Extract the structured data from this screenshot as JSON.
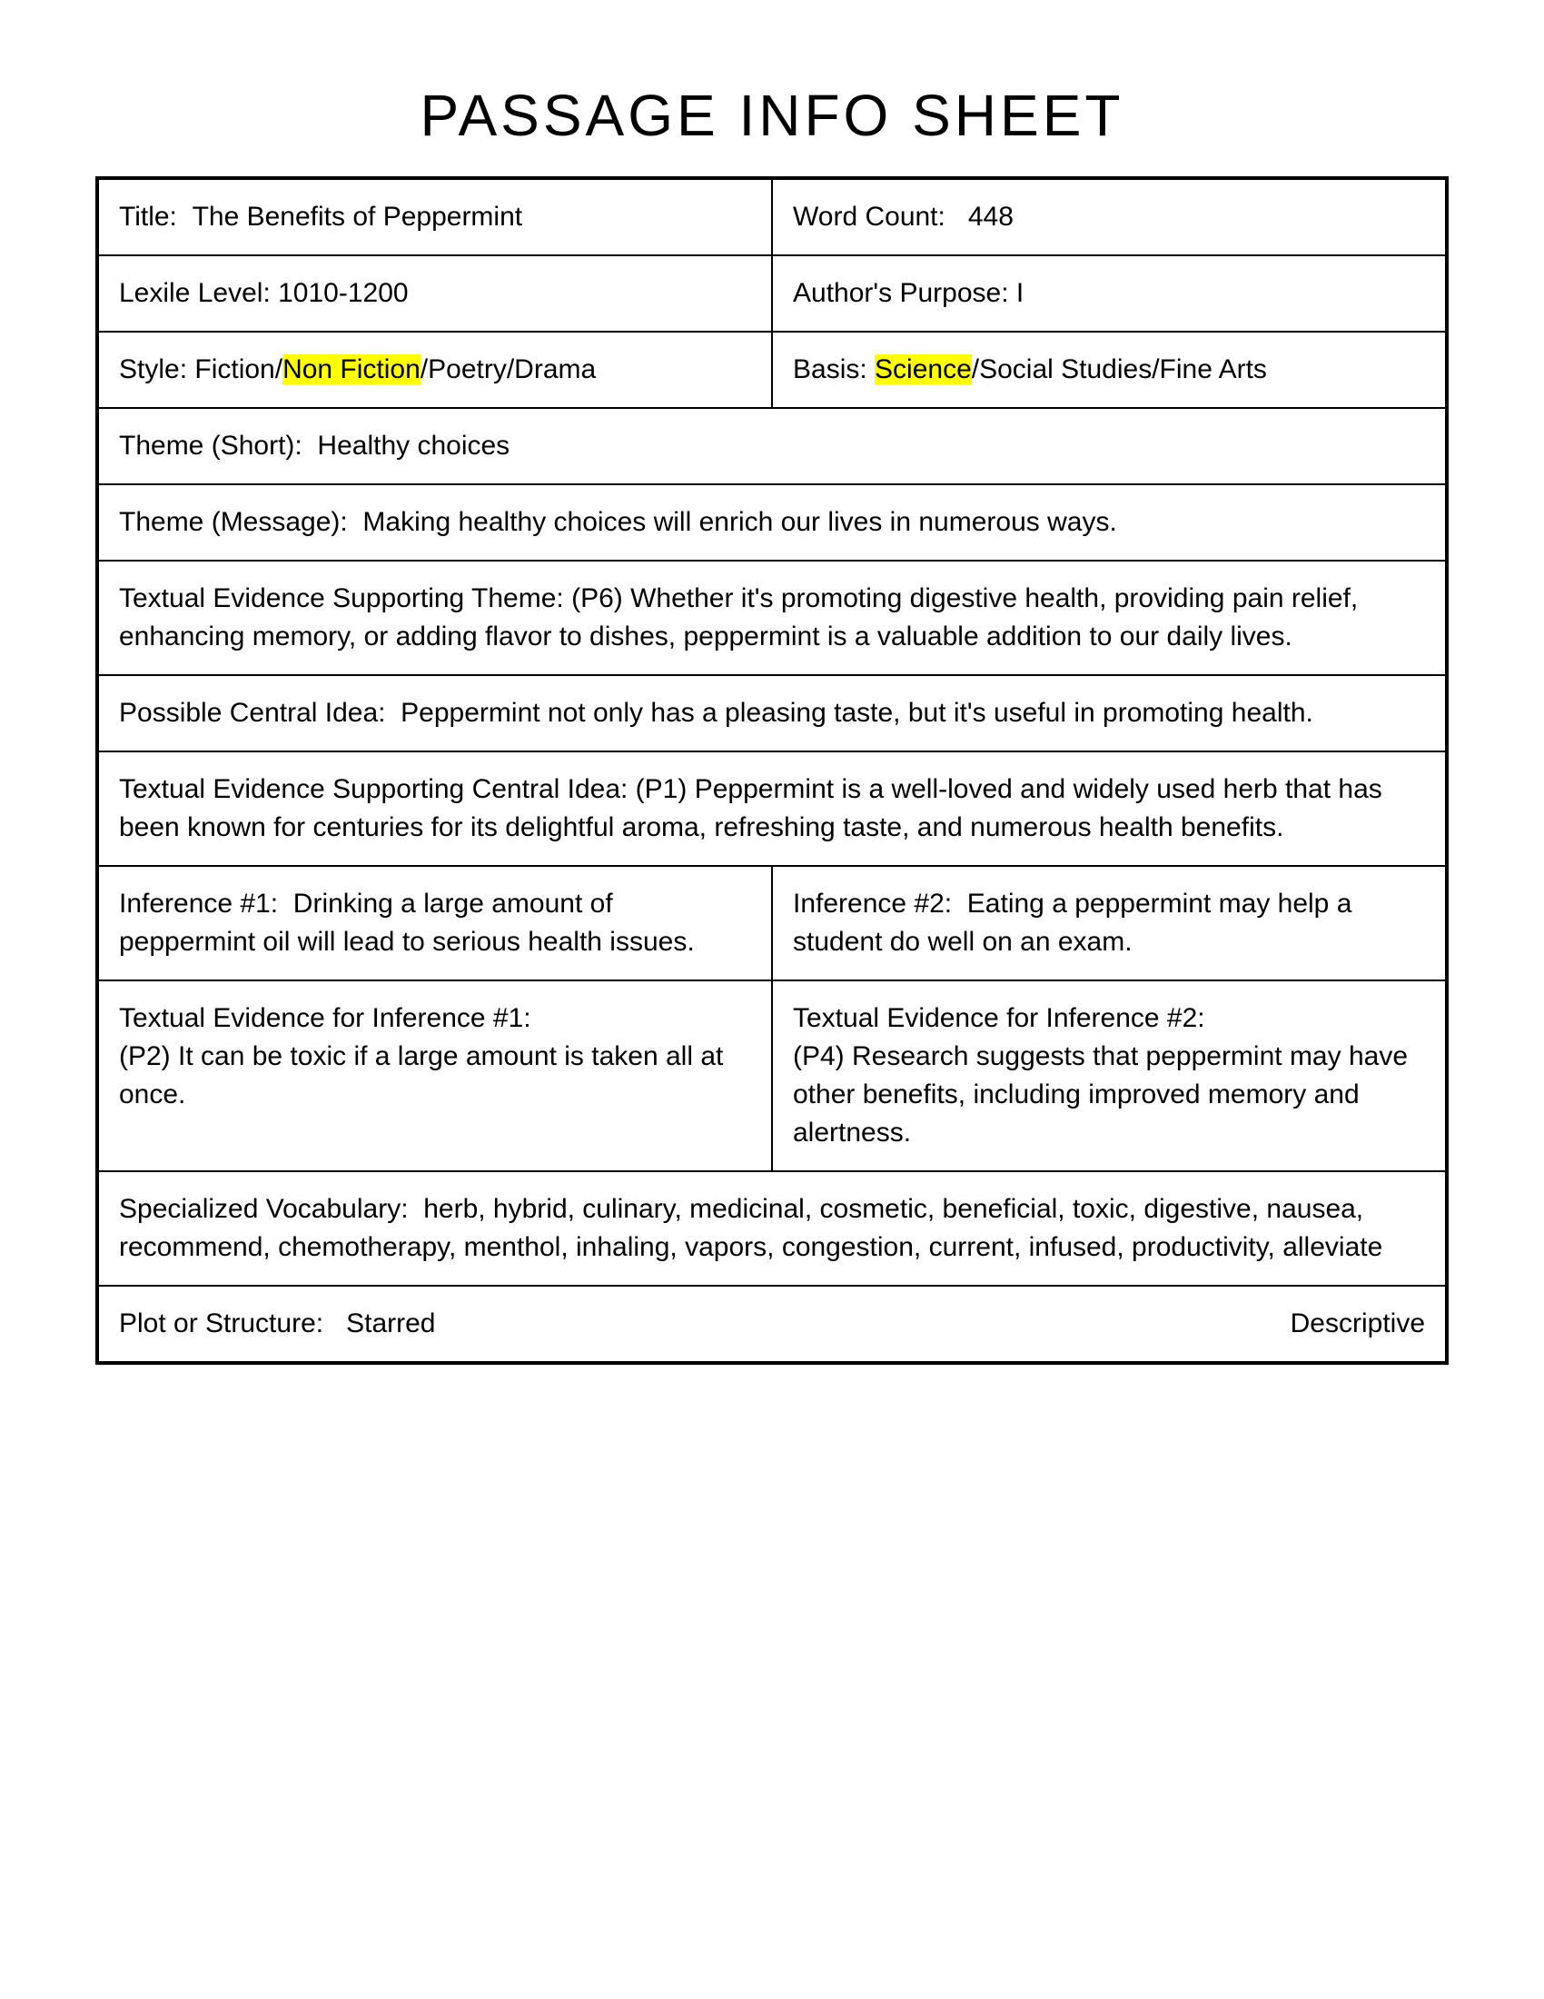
{
  "heading": "Passage Info Sheet",
  "title_label": "Title:",
  "title_value": "The Benefits of Peppermint",
  "wordcount_label": "Word Count:",
  "wordcount_value": "448",
  "lexile_label": "Lexile Level: 1010-1200",
  "purpose_label": "Author's Purpose: I",
  "style_prefix": "Style: Fiction/",
  "style_hl": "Non Fiction",
  "style_suffix": "/Poetry/Drama",
  "basis_prefix": "Basis:  ",
  "basis_hl": "Science",
  "basis_suffix": "/Social Studies/Fine Arts",
  "theme_short_label": "Theme (Short):",
  "theme_short_value": "Healthy choices",
  "theme_msg_label": "Theme (Message):",
  "theme_msg_value": "Making healthy choices will enrich our lives in numerous ways.",
  "evidence_theme": "Textual Evidence Supporting Theme: (P6) Whether it's promoting digestive health, providing pain relief, enhancing memory, or adding flavor to dishes, peppermint is a valuable addition to our daily lives.",
  "central_idea_label": "Possible Central Idea:",
  "central_idea_value": "Peppermint not only has a pleasing taste, but it's useful in promoting health.",
  "evidence_central": "Textual Evidence Supporting Central Idea: (P1) Peppermint is a well-loved and widely used herb that has been known for centuries for its delightful aroma, refreshing taste, and numerous health benefits.",
  "inf1_label": "Inference #1:",
  "inf1_value": "Drinking a large amount of peppermint oil will lead to serious health issues.",
  "inf2_label": "Inference #2:",
  "inf2_value": "Eating a peppermint may help a student do well on an exam.",
  "inf1_ev_label": "Textual Evidence for Inference #1:",
  "inf1_ev_value": "(P2) It can be toxic if a large amount is taken all at once.",
  "inf2_ev_label": "Textual Evidence for Inference #2:",
  "inf2_ev_value": "(P4) Research suggests that peppermint may have other benefits, including improved memory and alertness.",
  "vocab_label": "Specialized Vocabulary:",
  "vocab_value": "herb, hybrid, culinary, medicinal, cosmetic, beneficial, toxic, digestive, nausea, recommend, chemotherapy, menthol, inhaling, vapors, congestion, current, infused, productivity, alleviate",
  "plot_label": "Plot or Structure:",
  "plot_value": "Starred",
  "plot_right": "Descriptive"
}
